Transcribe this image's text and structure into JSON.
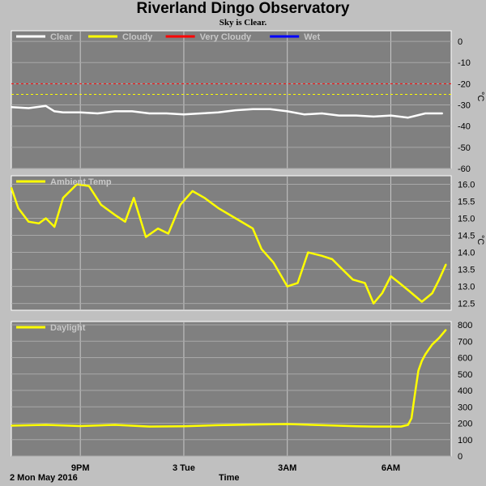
{
  "title": "Riverland Dingo Observatory",
  "subtitle": "Sky is Clear.",
  "footer": {
    "date": "2 Mon May 2016",
    "xlabel": "Time"
  },
  "x_ticks": [
    "9PM",
    "3 Tue",
    "3AM",
    "6AM"
  ],
  "chart_data": [
    {
      "type": "line",
      "name": "sky",
      "legend": [
        {
          "label": "Clear",
          "color": "#ffffff"
        },
        {
          "label": "Cloudy",
          "color": "#ffff00"
        },
        {
          "label": "Very Cloudy",
          "color": "#ff0000"
        },
        {
          "label": "Wet",
          "color": "#0000ff"
        }
      ],
      "unit": "°C",
      "ylim": [
        -60,
        5
      ],
      "yticks": [
        0,
        -10,
        -20,
        -30,
        -40,
        -50,
        -60
      ],
      "thresholds": [
        {
          "value": -20,
          "color": "#ff0000"
        },
        {
          "value": -25,
          "color": "#ffff00"
        }
      ],
      "series": [
        {
          "name": "Clear",
          "color": "#ffffff",
          "x": [
            19.0,
            19.5,
            20.0,
            20.25,
            20.5,
            21.0,
            21.5,
            22.0,
            22.5,
            23.0,
            23.5,
            24.0,
            24.5,
            25.0,
            25.5,
            26.0,
            26.5,
            27.0,
            27.5,
            28.0,
            28.5,
            29.0,
            29.5,
            30.0,
            30.5,
            31.0,
            31.5
          ],
          "y": [
            -31,
            -31.5,
            -30.5,
            -33,
            -33.5,
            -33.5,
            -34,
            -33,
            -33,
            -34,
            -34,
            -34.5,
            -34,
            -33.5,
            -32.5,
            -32,
            -32,
            -33,
            -34.5,
            -34,
            -35,
            -35,
            -35.5,
            -35,
            -36,
            -34,
            -34
          ]
        }
      ]
    },
    {
      "type": "line",
      "name": "ambient",
      "legend": [
        {
          "label": "Ambient Temp",
          "color": "#ffff00"
        }
      ],
      "unit": "°C",
      "ylim": [
        12.3,
        16.25
      ],
      "yticks": [
        16.0,
        15.5,
        15.0,
        14.5,
        14.0,
        13.5,
        13.0,
        12.5
      ],
      "series": [
        {
          "name": "Ambient Temp",
          "color": "#ffff00",
          "x": [
            19.0,
            19.2,
            19.5,
            19.8,
            20.0,
            20.25,
            20.5,
            20.9,
            21.25,
            21.6,
            22.0,
            22.3,
            22.55,
            22.9,
            23.25,
            23.55,
            23.9,
            24.25,
            24.6,
            25.0,
            25.5,
            26.0,
            26.25,
            26.6,
            27.0,
            27.3,
            27.6,
            28.0,
            28.3,
            28.6,
            28.9,
            29.25,
            29.5,
            29.75,
            30.0,
            30.25,
            30.55,
            30.9,
            31.2,
            31.4,
            31.6
          ],
          "y": [
            15.9,
            15.3,
            14.9,
            14.85,
            15.0,
            14.75,
            15.6,
            16.0,
            15.95,
            15.4,
            15.1,
            14.9,
            15.6,
            14.45,
            14.7,
            14.55,
            15.4,
            15.8,
            15.6,
            15.3,
            15.0,
            14.7,
            14.1,
            13.7,
            13.0,
            13.1,
            14.0,
            13.9,
            13.8,
            13.5,
            13.2,
            13.1,
            12.5,
            12.8,
            13.3,
            13.1,
            12.85,
            12.55,
            12.8,
            13.2,
            13.65
          ]
        }
      ]
    },
    {
      "type": "line",
      "name": "daylight",
      "legend": [
        {
          "label": "Daylight",
          "color": "#ffff00"
        }
      ],
      "unit": "",
      "ylim": [
        0,
        820
      ],
      "yticks": [
        800,
        700,
        600,
        500,
        400,
        300,
        200,
        100,
        0
      ],
      "series": [
        {
          "name": "Daylight",
          "color": "#ffff00",
          "x": [
            19.0,
            20.0,
            21.0,
            22.0,
            23.0,
            24.0,
            25.0,
            26.0,
            27.0,
            28.0,
            29.0,
            29.5,
            30.0,
            30.3,
            30.5,
            30.6,
            30.7,
            30.8,
            30.9,
            31.0,
            31.1,
            31.2,
            31.4,
            31.6
          ],
          "y": [
            185,
            190,
            183,
            190,
            180,
            182,
            188,
            192,
            195,
            188,
            182,
            180,
            180,
            180,
            190,
            230,
            380,
            520,
            580,
            620,
            650,
            680,
            720,
            770
          ]
        }
      ]
    }
  ]
}
